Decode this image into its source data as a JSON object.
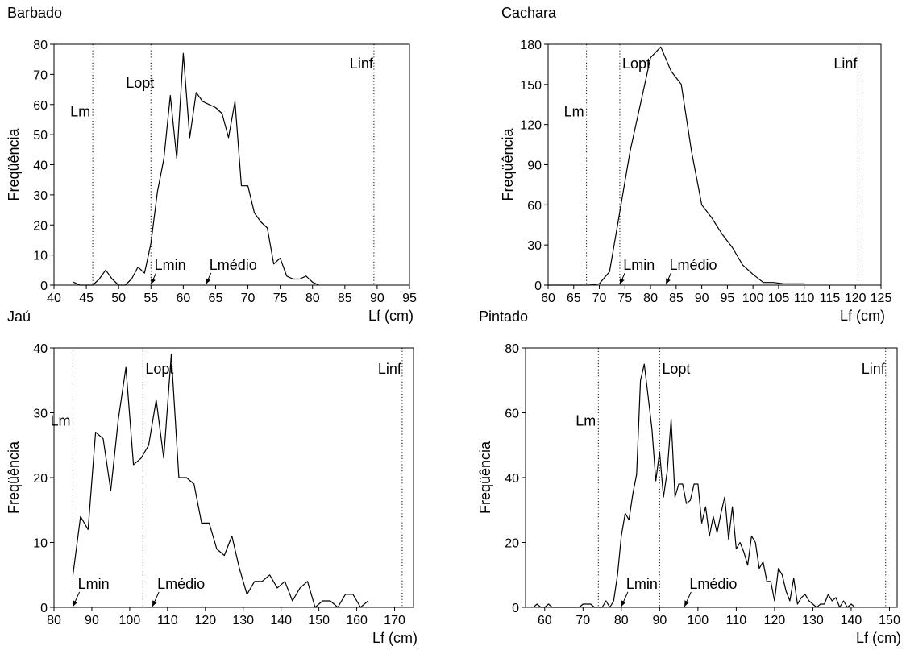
{
  "chart_data": [
    {
      "type": "line",
      "title": "Barbado",
      "xlabel": "Lf (cm)",
      "ylabel": "Freqüência",
      "xlim": [
        40,
        95
      ],
      "ylim": [
        0,
        80
      ],
      "xticks": [
        40,
        45,
        50,
        55,
        60,
        65,
        70,
        75,
        80,
        85,
        90,
        95
      ],
      "yticks": [
        0,
        10,
        20,
        30,
        40,
        50,
        60,
        70,
        80
      ],
      "series": [
        {
          "x": [
            43,
            44,
            45,
            46,
            47,
            48,
            49,
            50,
            51,
            52,
            53,
            54,
            55,
            56,
            57,
            58,
            59,
            60,
            61,
            62,
            63,
            64,
            65,
            66,
            67,
            68,
            69,
            70,
            71,
            72,
            73,
            74,
            75,
            76,
            77,
            78,
            79,
            80,
            81
          ],
          "y": [
            1,
            0,
            0,
            0,
            2,
            5,
            2,
            0,
            0,
            2,
            6,
            4,
            14,
            31,
            42,
            63,
            42,
            77,
            49,
            64,
            61,
            60,
            59,
            57,
            49,
            61,
            33,
            33,
            24,
            21,
            19,
            7,
            9,
            3,
            2,
            2,
            3,
            1,
            0
          ]
        }
      ],
      "reference_lines": [
        {
          "label": "Lm",
          "x": 46
        },
        {
          "label": "Lopt",
          "x": 55
        },
        {
          "label": "Linf",
          "x": 89.5
        }
      ],
      "arrow_labels": [
        {
          "label": "Lmin",
          "x": 55
        },
        {
          "label": "Lmédio",
          "x": 63.5
        }
      ]
    },
    {
      "type": "line",
      "title": "Cachara",
      "xlabel": "Lf (cm)",
      "ylabel": "Freqüência",
      "xlim": [
        60,
        125
      ],
      "ylim": [
        0,
        180
      ],
      "xticks": [
        60,
        65,
        70,
        75,
        80,
        85,
        90,
        95,
        100,
        105,
        110,
        115,
        120,
        125
      ],
      "yticks": [
        0,
        30,
        60,
        90,
        120,
        150,
        180
      ],
      "series": [
        {
          "x": [
            60,
            65,
            68,
            70,
            72,
            74,
            76,
            78,
            80,
            82,
            84,
            86,
            88,
            90,
            92,
            94,
            96,
            98,
            100,
            102,
            104,
            106,
            108,
            110
          ],
          "y": [
            0,
            0,
            0,
            1,
            10,
            55,
            100,
            135,
            170,
            178,
            160,
            150,
            100,
            60,
            50,
            38,
            28,
            15,
            8,
            2,
            2,
            1,
            1,
            1
          ]
        }
      ],
      "reference_lines": [
        {
          "label": "Lm",
          "x": 67.5
        },
        {
          "label": "Lopt",
          "x": 74
        },
        {
          "label": "Linf",
          "x": 120.5
        }
      ],
      "arrow_labels": [
        {
          "label": "Lmin",
          "x": 74
        },
        {
          "label": "Lmédio",
          "x": 83
        }
      ]
    },
    {
      "type": "line",
      "title": "Jaú",
      "xlabel": "Lf (cm)",
      "ylabel": "Freqüência",
      "xlim": [
        80,
        175
      ],
      "ylim": [
        0,
        40
      ],
      "xticks": [
        80,
        90,
        100,
        110,
        120,
        130,
        140,
        150,
        160,
        170
      ],
      "yticks": [
        0,
        10,
        20,
        30,
        40
      ],
      "series": [
        {
          "x": [
            85,
            87,
            89,
            91,
            93,
            95,
            97,
            99,
            101,
            103,
            105,
            107,
            109,
            111,
            113,
            115,
            117,
            119,
            121,
            123,
            125,
            127,
            129,
            131,
            133,
            135,
            137,
            139,
            141,
            143,
            145,
            147,
            149,
            151,
            153,
            155,
            157,
            159,
            161,
            163
          ],
          "y": [
            5,
            14,
            12,
            27,
            26,
            18,
            29,
            37,
            22,
            23,
            25,
            32,
            23,
            39,
            20,
            20,
            19,
            13,
            13,
            9,
            8,
            11,
            6,
            2,
            4,
            4,
            5,
            3,
            4,
            1,
            3,
            4,
            0,
            1,
            1,
            0,
            2,
            2,
            0,
            1
          ]
        }
      ],
      "reference_lines": [
        {
          "label": "Lm",
          "x": 85
        },
        {
          "label": "Lopt",
          "x": 103.5
        },
        {
          "label": "Linf",
          "x": 172
        }
      ],
      "arrow_labels": [
        {
          "label": "Lmin",
          "x": 85
        },
        {
          "label": "Lmédio",
          "x": 106
        }
      ]
    },
    {
      "type": "line",
      "title": "Pintado",
      "xlabel": "Lf (cm)",
      "ylabel": "Freqüência",
      "xlim": [
        55,
        152
      ],
      "ylim": [
        0,
        80
      ],
      "xticks": [
        60,
        70,
        80,
        90,
        100,
        110,
        120,
        130,
        140,
        150
      ],
      "yticks": [
        0,
        20,
        40,
        60,
        80
      ],
      "series": [
        {
          "x": [
            57,
            58,
            59,
            60,
            61,
            62,
            63,
            64,
            65,
            66,
            67,
            68,
            69,
            70,
            71,
            72,
            73,
            74,
            75,
            76,
            77,
            78,
            79,
            80,
            81,
            82,
            83,
            84,
            85,
            86,
            87,
            88,
            89,
            90,
            91,
            92,
            93,
            94,
            95,
            96,
            97,
            98,
            99,
            100,
            101,
            102,
            103,
            104,
            105,
            106,
            107,
            108,
            109,
            110,
            111,
            112,
            113,
            114,
            115,
            116,
            117,
            118,
            119,
            120,
            121,
            122,
            123,
            124,
            125,
            126,
            127,
            128,
            129,
            130,
            131,
            132,
            133,
            134,
            135,
            136,
            137,
            138,
            139,
            140,
            141
          ],
          "y": [
            0,
            1,
            0,
            0,
            1,
            0,
            0,
            0,
            0,
            0,
            0,
            0,
            0,
            1,
            1,
            1,
            0,
            0,
            0,
            2,
            0,
            2,
            10,
            22,
            29,
            27,
            35,
            41,
            70,
            75,
            65,
            55,
            39,
            48,
            34,
            42,
            58,
            34,
            38,
            38,
            32,
            33,
            38,
            38,
            26,
            31,
            22,
            28,
            23,
            29,
            34,
            21,
            31,
            18,
            20,
            17,
            13,
            22,
            20,
            12,
            14,
            8,
            8,
            2,
            12,
            10,
            5,
            2,
            9,
            1,
            3,
            4,
            2,
            1,
            0,
            1,
            1,
            4,
            2,
            3,
            0,
            2,
            0,
            1,
            0
          ]
        }
      ],
      "reference_lines": [
        {
          "label": "Lm",
          "x": 74
        },
        {
          "label": "Lopt",
          "x": 90
        },
        {
          "label": "Linf",
          "x": 149
        }
      ],
      "arrow_labels": [
        {
          "label": "Lmin",
          "x": 80
        },
        {
          "label": "Lmédio",
          "x": 96.5
        }
      ]
    }
  ]
}
